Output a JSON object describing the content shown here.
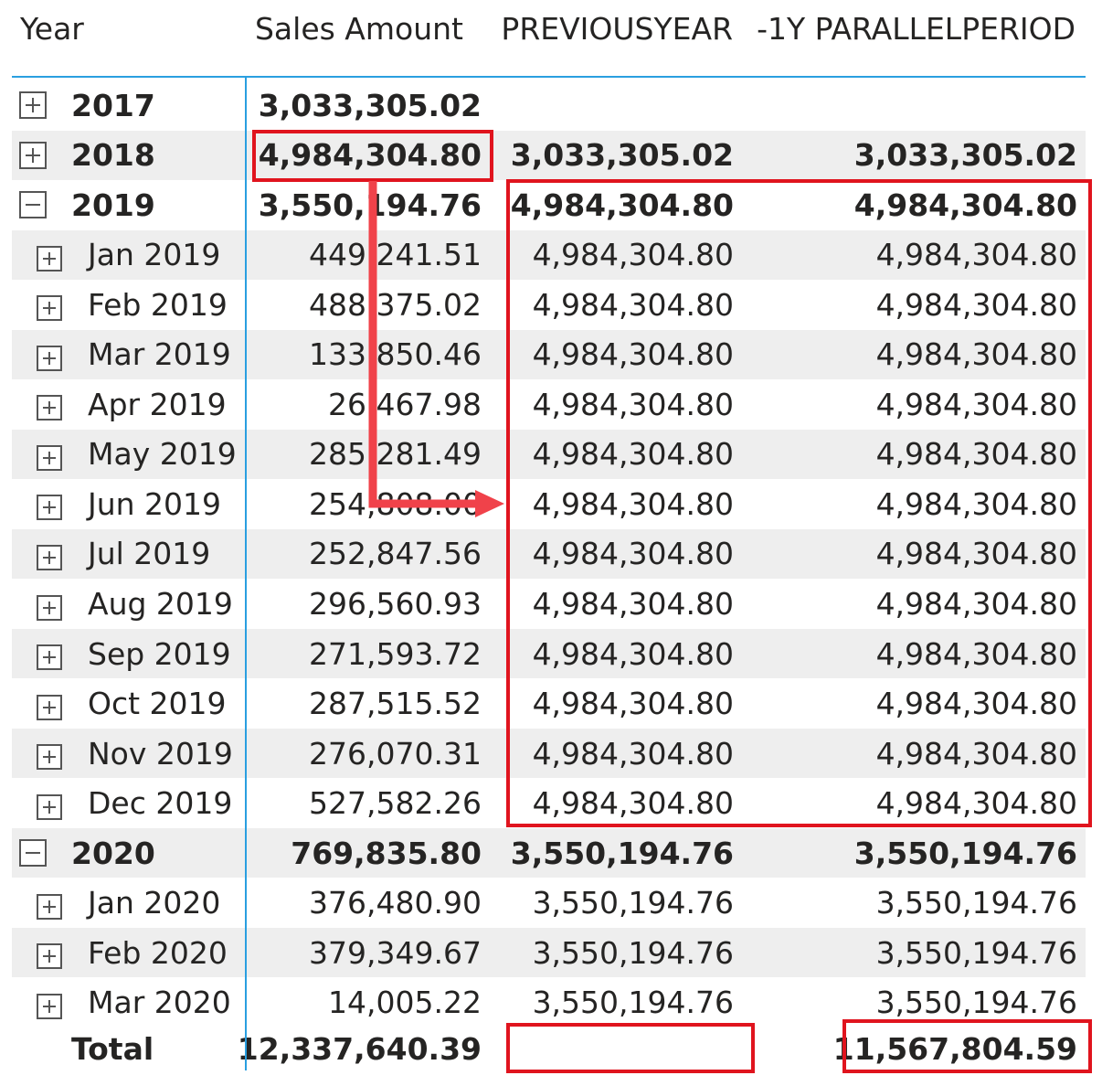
{
  "headers": {
    "year": "Year",
    "sales": "Sales Amount",
    "prev": "PREVIOUSYEAR",
    "par": "-1Y PARALLELPERIOD"
  },
  "rows": [
    {
      "label": "2017",
      "level": "year",
      "toggle": "plus",
      "sales": "3,033,305.02",
      "prev": "",
      "par": ""
    },
    {
      "label": "2018",
      "level": "year",
      "toggle": "plus",
      "sales": "4,984,304.80",
      "prev": "3,033,305.02",
      "par": "3,033,305.02"
    },
    {
      "label": "2019",
      "level": "year",
      "toggle": "minus",
      "sales": "3,550,194.76",
      "prev": "4,984,304.80",
      "par": "4,984,304.80"
    },
    {
      "label": "Jan 2019",
      "level": "month",
      "toggle": "plus",
      "sales": "449,241.51",
      "prev": "4,984,304.80",
      "par": "4,984,304.80"
    },
    {
      "label": "Feb 2019",
      "level": "month",
      "toggle": "plus",
      "sales": "488,375.02",
      "prev": "4,984,304.80",
      "par": "4,984,304.80"
    },
    {
      "label": "Mar 2019",
      "level": "month",
      "toggle": "plus",
      "sales": "133,850.46",
      "prev": "4,984,304.80",
      "par": "4,984,304.80"
    },
    {
      "label": "Apr 2019",
      "level": "month",
      "toggle": "plus",
      "sales": "26,467.98",
      "prev": "4,984,304.80",
      "par": "4,984,304.80"
    },
    {
      "label": "May 2019",
      "level": "month",
      "toggle": "plus",
      "sales": "285,281.49",
      "prev": "4,984,304.80",
      "par": "4,984,304.80"
    },
    {
      "label": "Jun 2019",
      "level": "month",
      "toggle": "plus",
      "sales": "254,808.00",
      "prev": "4,984,304.80",
      "par": "4,984,304.80"
    },
    {
      "label": "Jul 2019",
      "level": "month",
      "toggle": "plus",
      "sales": "252,847.56",
      "prev": "4,984,304.80",
      "par": "4,984,304.80"
    },
    {
      "label": "Aug 2019",
      "level": "month",
      "toggle": "plus",
      "sales": "296,560.93",
      "prev": "4,984,304.80",
      "par": "4,984,304.80"
    },
    {
      "label": "Sep 2019",
      "level": "month",
      "toggle": "plus",
      "sales": "271,593.72",
      "prev": "4,984,304.80",
      "par": "4,984,304.80"
    },
    {
      "label": "Oct 2019",
      "level": "month",
      "toggle": "plus",
      "sales": "287,515.52",
      "prev": "4,984,304.80",
      "par": "4,984,304.80"
    },
    {
      "label": "Nov 2019",
      "level": "month",
      "toggle": "plus",
      "sales": "276,070.31",
      "prev": "4,984,304.80",
      "par": "4,984,304.80"
    },
    {
      "label": "Dec 2019",
      "level": "month",
      "toggle": "plus",
      "sales": "527,582.26",
      "prev": "4,984,304.80",
      "par": "4,984,304.80"
    },
    {
      "label": "2020",
      "level": "year",
      "toggle": "minus",
      "sales": "769,835.80",
      "prev": "3,550,194.76",
      "par": "3,550,194.76"
    },
    {
      "label": "Jan 2020",
      "level": "month",
      "toggle": "plus",
      "sales": "376,480.90",
      "prev": "3,550,194.76",
      "par": "3,550,194.76"
    },
    {
      "label": "Feb 2020",
      "level": "month",
      "toggle": "plus",
      "sales": "379,349.67",
      "prev": "3,550,194.76",
      "par": "3,550,194.76"
    },
    {
      "label": "Mar 2020",
      "level": "month",
      "toggle": "plus",
      "sales": "14,005.22",
      "prev": "3,550,194.76",
      "par": "3,550,194.76"
    }
  ],
  "total": {
    "label": "Total",
    "sales": "12,337,640.39",
    "prev": "",
    "par": "11,567,804.59"
  },
  "colors": {
    "highlight": "#e0141e",
    "arrow": "#f0424a",
    "divider": "#2a9fe0",
    "row_shade": "#eeeeee"
  },
  "icons": {
    "expand": "plus-square-icon",
    "collapse": "minus-square-icon"
  }
}
